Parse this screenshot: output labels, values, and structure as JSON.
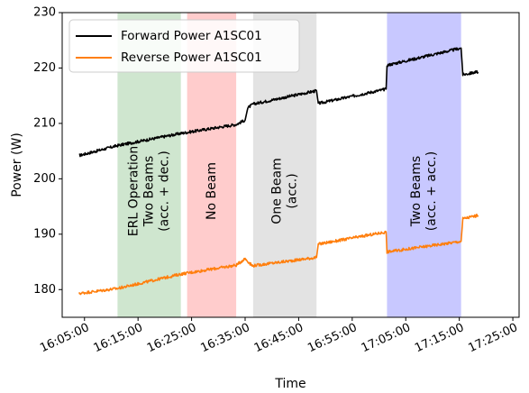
{
  "chart_data": {
    "type": "line",
    "xlabel": "Time",
    "ylabel": "Power (W)",
    "xlim": [
      "16:00:50",
      "17:26:10"
    ],
    "ylim": [
      175,
      230
    ],
    "xticks": [
      "16:05:00",
      "16:15:00",
      "16:25:00",
      "16:35:00",
      "16:45:00",
      "16:55:00",
      "17:05:00",
      "17:15:00",
      "17:25:00"
    ],
    "yticks": [
      180,
      190,
      200,
      210,
      220,
      230
    ],
    "legend": "top-left",
    "grid": false,
    "regions": [
      {
        "start": "16:11:10",
        "end": "16:23:00",
        "color": "#cfe6cf",
        "lines": [
          "ERL Operation",
          "Two Beams",
          "(acc. + dec.)"
        ]
      },
      {
        "start": "16:24:10",
        "end": "16:33:20",
        "color": "#ffcccc",
        "lines": [
          "No Beam"
        ]
      },
      {
        "start": "16:36:30",
        "end": "16:48:20",
        "color": "#e3e3e3",
        "lines": [
          "One Beam",
          "(acc.)"
        ]
      },
      {
        "start": "17:01:30",
        "end": "17:15:20",
        "color": "#c8c8ff",
        "lines": [
          "Two Beams",
          "(acc. + acc.)"
        ]
      }
    ],
    "series": [
      {
        "name": "Forward Power A1SC01",
        "color": "#000000",
        "points": [
          [
            "16:04:00",
            204.2
          ],
          [
            "16:11:10",
            206.0
          ],
          [
            "16:23:00",
            208.2
          ],
          [
            "16:33:20",
            209.8
          ],
          [
            "16:35:00",
            210.6
          ],
          [
            "16:35:30",
            212.8
          ],
          [
            "16:36:30",
            213.5
          ],
          [
            "16:48:20",
            215.9
          ],
          [
            "16:48:40",
            213.6
          ],
          [
            "16:55:00",
            214.9
          ],
          [
            "17:01:20",
            216.2
          ],
          [
            "17:01:30",
            220.5
          ],
          [
            "17:15:20",
            223.6
          ],
          [
            "17:15:40",
            218.8
          ],
          [
            "17:18:30",
            219.3
          ]
        ]
      },
      {
        "name": "Reverse Power A1SC01",
        "color": "#ff7f0e",
        "points": [
          [
            "16:04:00",
            179.3
          ],
          [
            "16:11:10",
            180.2
          ],
          [
            "16:23:00",
            182.8
          ],
          [
            "16:33:20",
            184.4
          ],
          [
            "16:35:00",
            185.6
          ],
          [
            "16:36:20",
            184.3
          ],
          [
            "16:48:20",
            185.8
          ],
          [
            "16:48:40",
            188.2
          ],
          [
            "17:01:20",
            190.4
          ],
          [
            "17:01:30",
            186.8
          ],
          [
            "17:15:20",
            188.7
          ],
          [
            "17:15:40",
            192.8
          ],
          [
            "17:18:30",
            193.4
          ]
        ]
      }
    ]
  }
}
